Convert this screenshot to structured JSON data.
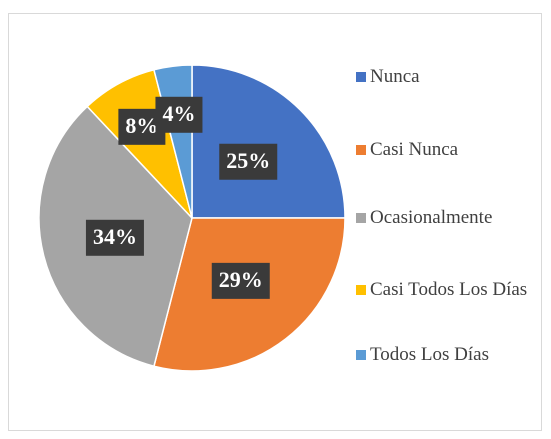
{
  "chart_data": {
    "type": "pie",
    "categories": [
      "Nunca",
      "Casi Nunca",
      "Ocasionalmente",
      "Casi Todos Los Días",
      "Todos Los Días"
    ],
    "values": [
      25,
      29,
      34,
      8,
      4
    ],
    "value_labels": [
      "25%",
      "29%",
      "34%",
      "8%",
      "4%"
    ],
    "colors": [
      "#4472c4",
      "#ed7d31",
      "#a5a5a5",
      "#ffc000",
      "#5b9bd5"
    ],
    "legend": "right"
  }
}
